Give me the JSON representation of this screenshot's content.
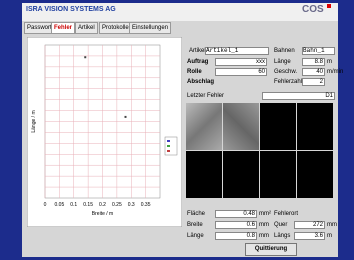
{
  "header": {
    "company": "ISRA VISION SYSTEMS AG",
    "logo": "COS"
  },
  "tabs": [
    "Passwort",
    "Fehler",
    "Artikel",
    "Protokolle",
    "Einstellungen"
  ],
  "plot": {
    "type": "scatter",
    "x_label": "Breite / m",
    "y_label": "Länge / m",
    "xlim": [
      0,
      0.4
    ],
    "xticks": [
      0,
      0.05,
      0.1,
      0.15,
      0.2,
      0.25,
      0.3,
      0.35
    ],
    "ylim": [
      0,
      10
    ],
    "x": [
      0.14,
      0.28
    ],
    "y": [
      9.2,
      5.3
    ],
    "color": "#444444",
    "grid": true
  },
  "form": {
    "artikel_label": "Artikel",
    "artikel": "Artikel_1",
    "bahnen_label": "Bahnen",
    "bahnen": "Bahn_1",
    "auftrag_label": "Auftrag",
    "auftrag": "xxx",
    "laenge_label": "Länge",
    "laenge": "8.8",
    "laenge_unit": "m",
    "rolle_label": "Rolle",
    "rolle": "60",
    "geschw_label": "Geschw.",
    "geschw": "40",
    "geschw_unit": "m/min",
    "abschlag_label": "Abschlag",
    "fehlerzahl_label": "Fehlerzahl",
    "fehlerzahl": "2",
    "letzter_label": "Letzter Fehler",
    "letzter": "D1",
    "flaeche_label": "Fläche",
    "flaeche": "0.48",
    "flaeche_unit": "mm²",
    "fehlerort_label": "Fehlerort",
    "breite_label": "Breite",
    "breite": "0.6",
    "breite_unit": "mm",
    "quer_label": "Quer",
    "quer": "272",
    "quer_unit": "mm",
    "flaenge_label": "Länge",
    "flaenge": "0.8",
    "flaenge_unit": "mm",
    "laengs_label": "Längs",
    "laengs": "3.6",
    "laengs_unit": "m",
    "button": "Quittierung"
  }
}
